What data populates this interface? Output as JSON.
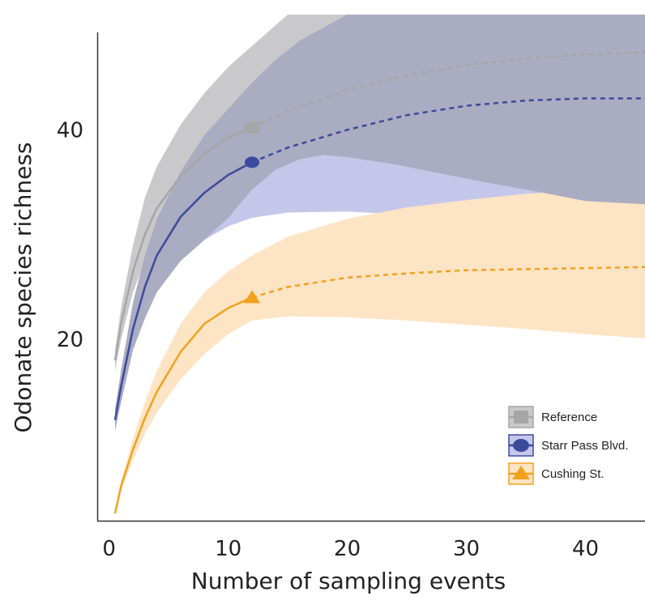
{
  "chart_data": {
    "type": "line",
    "title": "",
    "xlabel": "Number of sampling events",
    "ylabel": "Odonate species richness",
    "xlim": [
      -1,
      45
    ],
    "ylim": [
      2,
      51
    ],
    "xticks": [
      "0",
      "10",
      "20",
      "30",
      "40"
    ],
    "yticks": [
      "20",
      "40"
    ],
    "grid": false,
    "legend_position": "bottom-right",
    "series": [
      {
        "name": "Reference",
        "color": "#a6a6a6",
        "band_color": "#c9c9cb",
        "marker": "square",
        "observed_events": 12,
        "curve": [
          [
            0.5,
            18
          ],
          [
            1,
            21.5
          ],
          [
            2,
            26.5
          ],
          [
            3,
            30
          ],
          [
            4,
            32.5
          ],
          [
            6,
            35.6
          ],
          [
            8,
            37.7
          ],
          [
            10,
            39.3
          ],
          [
            12,
            40.2
          ],
          [
            15,
            41.8
          ],
          [
            20,
            43.8
          ],
          [
            25,
            45.2
          ],
          [
            30,
            46.2
          ],
          [
            35,
            46.8
          ],
          [
            40,
            47.2
          ],
          [
            45,
            47.4
          ]
        ],
        "band_upper": [
          [
            0.5,
            19
          ],
          [
            1,
            23
          ],
          [
            2,
            29
          ],
          [
            3,
            33.5
          ],
          [
            4,
            36.5
          ],
          [
            6,
            40.5
          ],
          [
            8,
            43.5
          ],
          [
            10,
            46
          ],
          [
            12,
            48
          ],
          [
            14,
            50
          ],
          [
            16,
            52
          ],
          [
            45,
            52
          ]
        ],
        "band_lower": [
          [
            0.5,
            17
          ],
          [
            1,
            20
          ],
          [
            2,
            24.5
          ],
          [
            3,
            27.5
          ],
          [
            4,
            29.5
          ],
          [
            6,
            32
          ],
          [
            8,
            33.5
          ],
          [
            10,
            34
          ],
          [
            12,
            34.3
          ],
          [
            15,
            34.6
          ],
          [
            20,
            34.6
          ],
          [
            25,
            34.2
          ],
          [
            30,
            33.8
          ],
          [
            35,
            33.5
          ],
          [
            40,
            33.2
          ],
          [
            45,
            32.9
          ]
        ]
      },
      {
        "name": "Starr Pass Blvd.",
        "color": "#3c4a9e",
        "band_color": "#c5c7ea",
        "overlap_color": "#aaacc1",
        "marker": "circle",
        "observed_events": 12,
        "curve": [
          [
            0.5,
            12.3
          ],
          [
            1,
            15.5
          ],
          [
            2,
            21
          ],
          [
            3,
            25
          ],
          [
            4,
            28
          ],
          [
            6,
            31.7
          ],
          [
            8,
            34
          ],
          [
            10,
            35.7
          ],
          [
            12,
            36.9
          ],
          [
            15,
            38.3
          ],
          [
            20,
            40
          ],
          [
            25,
            41.4
          ],
          [
            30,
            42.3
          ],
          [
            35,
            42.8
          ],
          [
            40,
            43
          ],
          [
            45,
            43
          ]
        ],
        "band_upper": [
          [
            0.5,
            13.3
          ],
          [
            1,
            17
          ],
          [
            2,
            23.5
          ],
          [
            3,
            28
          ],
          [
            4,
            31.5
          ],
          [
            6,
            36
          ],
          [
            8,
            39.5
          ],
          [
            10,
            42
          ],
          [
            12,
            44.5
          ],
          [
            14,
            46.7
          ],
          [
            16,
            48.5
          ],
          [
            20,
            51
          ],
          [
            45,
            51
          ]
        ],
        "band_lower": [
          [
            0.5,
            11.3
          ],
          [
            1,
            14
          ],
          [
            2,
            19
          ],
          [
            3,
            22
          ],
          [
            4,
            24.5
          ],
          [
            6,
            27.5
          ],
          [
            8,
            29.5
          ],
          [
            10,
            30.8
          ],
          [
            12,
            31.6
          ],
          [
            15,
            32.1
          ],
          [
            20,
            32.2
          ],
          [
            25,
            31.9
          ],
          [
            30,
            31.4
          ],
          [
            35,
            30.7
          ],
          [
            40,
            29.7
          ],
          [
            45,
            28.7
          ]
        ],
        "overlap_upper": [
          [
            0.5,
            13.3
          ],
          [
            1,
            17
          ],
          [
            2,
            23.5
          ],
          [
            3,
            28
          ],
          [
            4,
            31.5
          ],
          [
            6,
            36
          ],
          [
            8,
            39.5
          ],
          [
            10,
            42
          ],
          [
            12,
            44.5
          ],
          [
            14,
            46.7
          ],
          [
            16,
            48.5
          ],
          [
            20,
            51
          ],
          [
            45,
            51
          ]
        ],
        "overlap_lower": [
          [
            0.5,
            11.3
          ],
          [
            1,
            14
          ],
          [
            2,
            19
          ],
          [
            3,
            22
          ],
          [
            4,
            24.5
          ],
          [
            6,
            27.5
          ],
          [
            8,
            29.5
          ],
          [
            10,
            31.6
          ],
          [
            12,
            34.3
          ],
          [
            14,
            36.2
          ],
          [
            16,
            37.2
          ],
          [
            18,
            37.6
          ],
          [
            20,
            37.4
          ],
          [
            24,
            36.7
          ],
          [
            28,
            35.8
          ],
          [
            32,
            34.9
          ],
          [
            36,
            34.1
          ],
          [
            40,
            33.2
          ],
          [
            45,
            32.9
          ]
        ]
      },
      {
        "name": "Cushing St.",
        "color": "#f2a21e",
        "band_color": "#fde4c4",
        "marker": "triangle",
        "observed_events": 12,
        "curve": [
          [
            0.5,
            3.4
          ],
          [
            1,
            6
          ],
          [
            2,
            9.5
          ],
          [
            3,
            12.5
          ],
          [
            4,
            15
          ],
          [
            6,
            18.8
          ],
          [
            8,
            21.5
          ],
          [
            10,
            23
          ],
          [
            12,
            24
          ],
          [
            15,
            25
          ],
          [
            20,
            25.9
          ],
          [
            25,
            26.3
          ],
          [
            30,
            26.6
          ],
          [
            35,
            26.7
          ],
          [
            40,
            26.8
          ],
          [
            45,
            26.9
          ]
        ],
        "band_upper": [
          [
            0.5,
            3.6
          ],
          [
            1,
            6.5
          ],
          [
            2,
            10.5
          ],
          [
            3,
            14
          ],
          [
            4,
            17
          ],
          [
            6,
            21.5
          ],
          [
            8,
            24.5
          ],
          [
            10,
            26.5
          ],
          [
            12,
            28
          ],
          [
            15,
            29.8
          ],
          [
            20,
            31.5
          ],
          [
            25,
            32.6
          ],
          [
            30,
            33.3
          ],
          [
            35,
            33.9
          ],
          [
            40,
            34.2
          ],
          [
            45,
            34.5
          ]
        ],
        "band_lower": [
          [
            0.5,
            3.2
          ],
          [
            1,
            5.5
          ],
          [
            2,
            8.5
          ],
          [
            3,
            11
          ],
          [
            4,
            13
          ],
          [
            6,
            16.2
          ],
          [
            8,
            18.6
          ],
          [
            10,
            20.5
          ],
          [
            12,
            21.8
          ],
          [
            15,
            22.2
          ],
          [
            20,
            22.1
          ],
          [
            25,
            21.8
          ],
          [
            30,
            21.4
          ],
          [
            35,
            21
          ],
          [
            40,
            20.5
          ],
          [
            45,
            20.1
          ]
        ]
      }
    ]
  }
}
